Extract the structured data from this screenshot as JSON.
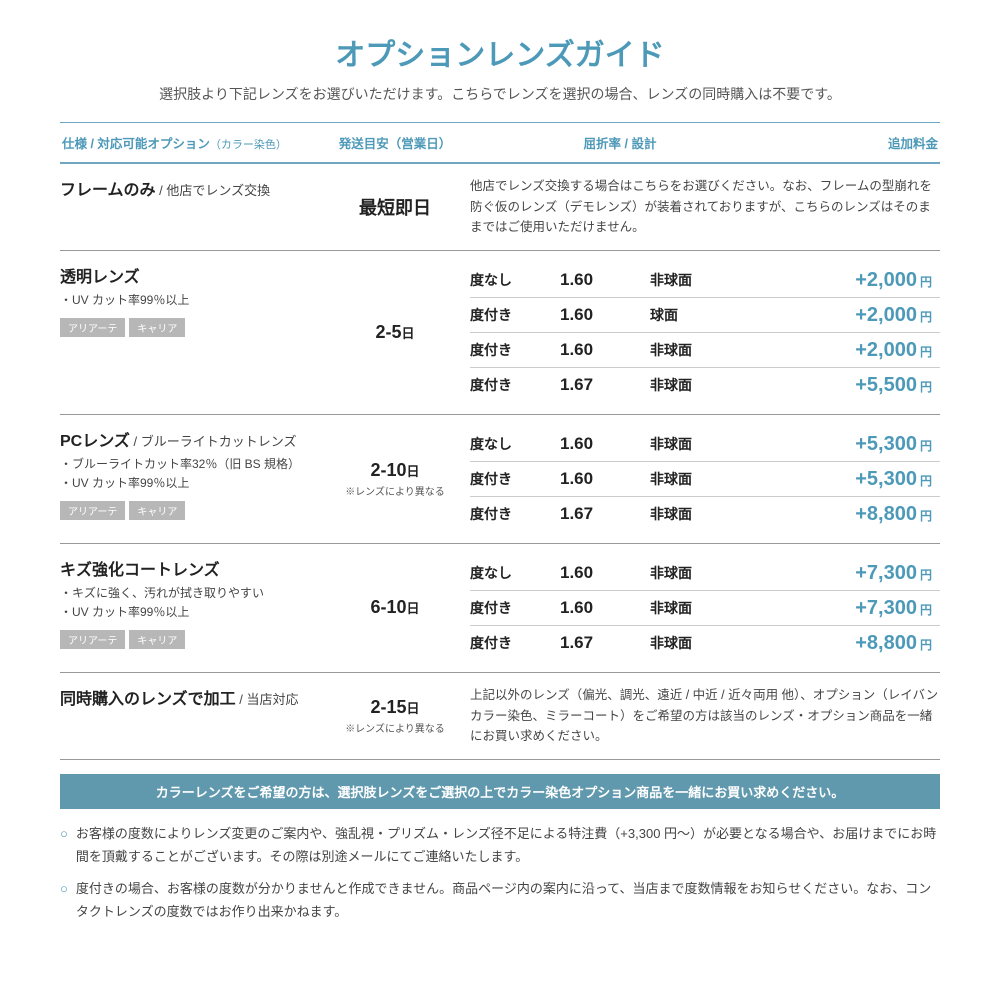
{
  "colors": {
    "accent": "#4d99b8",
    "banner_bg": "#6099ad",
    "tag_bg": "#b7b7b7"
  },
  "title": "オプションレンズガイド",
  "subtitle": "選択肢より下記レンズをお選びいただけます。こちらでレンズを選択の場合、レンズの同時購入は不要です。",
  "header": {
    "spec": "仕様 / 対応可能オプション",
    "spec_small": "（カラー染色）",
    "ship": "発送目安（営業日）",
    "rate": "屈折率 / 設計",
    "fee": "追加料金"
  },
  "sections": [
    {
      "title": "フレームのみ",
      "title_sub": " / 他店でレンズ交換",
      "bullets": [],
      "tags": [],
      "ship_main": "最短即日",
      "ship_unit": "",
      "ship_note": "",
      "note": "他店でレンズ交換する場合はこちらをお選びください。なお、フレームの型崩れを防ぐ仮のレンズ（デモレンズ）が装着されておりますが、こちらのレンズはそのままではご使用いただけません。"
    },
    {
      "title": "透明レンズ",
      "title_sub": "",
      "bullets": [
        "・UV カット率99％以上"
      ],
      "tags": [
        "アリアーテ",
        "キャリア"
      ],
      "ship_main": "2-5",
      "ship_unit": "日",
      "ship_note": "",
      "rows": [
        {
          "c1": "度なし",
          "c2": "1.60",
          "c3": "非球面",
          "c4": "+2,000"
        },
        {
          "c1": "度付き",
          "c2": "1.60",
          "c3": "球面",
          "c4": "+2,000"
        },
        {
          "c1": "度付き",
          "c2": "1.60",
          "c3": "非球面",
          "c4": "+2,000"
        },
        {
          "c1": "度付き",
          "c2": "1.67",
          "c3": "非球面",
          "c4": "+5,500"
        }
      ]
    },
    {
      "title": "PCレンズ",
      "title_sub": " / ブルーライトカットレンズ",
      "bullets": [
        "・ブルーライトカット率32％（旧 BS 規格）",
        "・UV カット率99％以上"
      ],
      "tags": [
        "アリアーテ",
        "キャリア"
      ],
      "ship_main": "2-10",
      "ship_unit": "日",
      "ship_note": "※レンズにより異なる",
      "rows": [
        {
          "c1": "度なし",
          "c2": "1.60",
          "c3": "非球面",
          "c4": "+5,300"
        },
        {
          "c1": "度付き",
          "c2": "1.60",
          "c3": "非球面",
          "c4": "+5,300"
        },
        {
          "c1": "度付き",
          "c2": "1.67",
          "c3": "非球面",
          "c4": "+8,800"
        }
      ]
    },
    {
      "title": "キズ強化コートレンズ",
      "title_sub": "",
      "bullets": [
        "・キズに強く、汚れが拭き取りやすい",
        "・UV カット率99％以上"
      ],
      "tags": [
        "アリアーテ",
        "キャリア"
      ],
      "ship_main": "6-10",
      "ship_unit": "日",
      "ship_note": "",
      "rows": [
        {
          "c1": "度なし",
          "c2": "1.60",
          "c3": "非球面",
          "c4": "+7,300"
        },
        {
          "c1": "度付き",
          "c2": "1.60",
          "c3": "非球面",
          "c4": "+7,300"
        },
        {
          "c1": "度付き",
          "c2": "1.67",
          "c3": "非球面",
          "c4": "+8,800"
        }
      ]
    },
    {
      "title": "同時購入のレンズで加工",
      "title_sub": " / 当店対応",
      "bullets": [],
      "tags": [],
      "ship_main": "2-15",
      "ship_unit": "日",
      "ship_note": "※レンズにより異なる",
      "note": "上記以外のレンズ（偏光、調光、遠近 / 中近 / 近々両用 他）、オプション（レイバンカラー染色、ミラーコート）をご希望の方は該当のレンズ・オプション商品を一緒にお買い求めください。"
    }
  ],
  "yen": "円",
  "banner": "カラーレンズをご希望の方は、選択肢レンズをご選択の上でカラー染色オプション商品を一緒にお買い求めください。",
  "notices": [
    "お客様の度数によりレンズ変更のご案内や、強乱視・プリズム・レンズ径不足による特注費（+3,300 円〜）が必要となる場合や、お届けまでにお時間を頂戴することがございます。その際は別途メールにてご連絡いたします。",
    "度付きの場合、お客様の度数が分かりませんと作成できません。商品ページ内の案内に沿って、当店まで度数情報をお知らせください。なお、コンタクトレンズの度数ではお作り出来かねます。"
  ],
  "notice_marker": "○"
}
